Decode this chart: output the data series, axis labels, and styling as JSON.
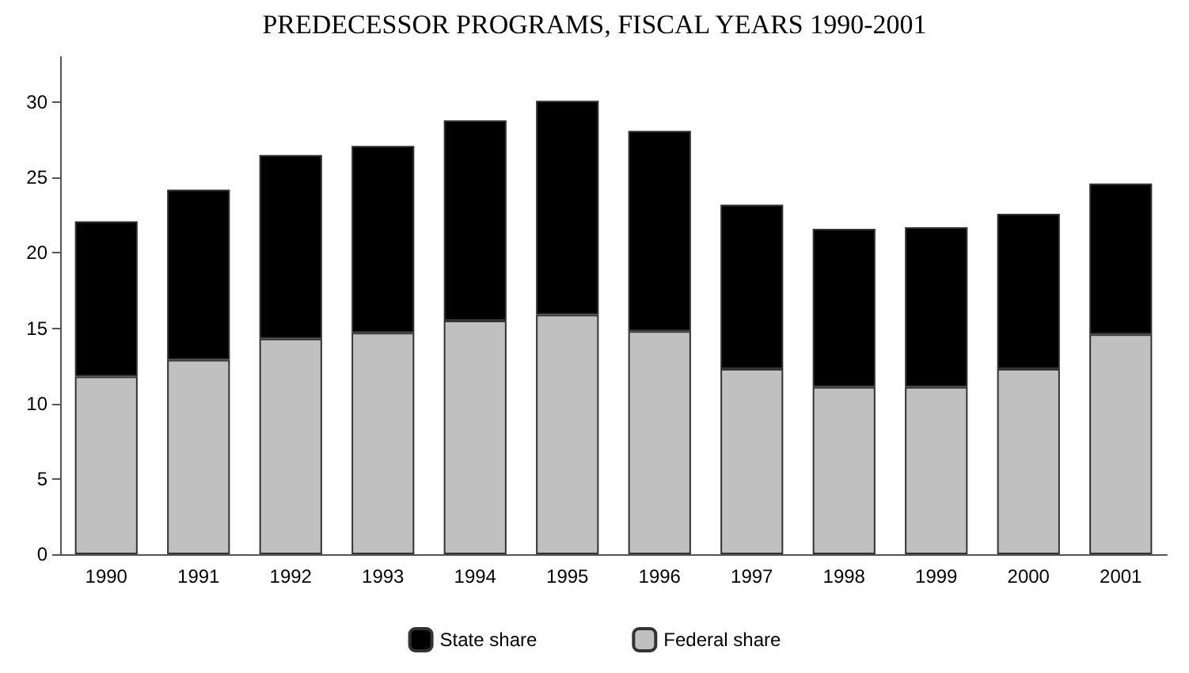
{
  "chart_data": {
    "type": "bar",
    "title": "PREDECESSOR PROGRAMS, FISCAL YEARS 1990-2001",
    "stacked": true,
    "categories": [
      "1990",
      "1991",
      "1992",
      "1993",
      "1994",
      "1995",
      "1996",
      "1997",
      "1998",
      "1999",
      "2000",
      "2001"
    ],
    "series": [
      {
        "name": "Federal share",
        "color": "#c0c0c0",
        "values": [
          11.8,
          12.9,
          14.3,
          14.7,
          15.5,
          15.9,
          14.8,
          12.3,
          11.1,
          11.1,
          12.3,
          14.6
        ]
      },
      {
        "name": "State share",
        "color": "#000000",
        "values": [
          10.3,
          11.3,
          12.2,
          12.4,
          13.3,
          14.2,
          13.3,
          10.9,
          10.5,
          10.6,
          10.3,
          10.0
        ]
      }
    ],
    "ylim": [
      0,
      33
    ],
    "yticks": [
      0,
      5,
      10,
      15,
      20,
      25,
      30
    ],
    "grid": false,
    "legend": "bottom"
  }
}
